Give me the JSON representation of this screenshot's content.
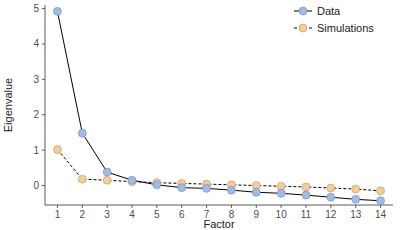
{
  "chart_data": {
    "type": "line",
    "x_label": "Factor",
    "y_label": "Eigenvalue",
    "x": [
      1,
      2,
      3,
      4,
      5,
      6,
      7,
      8,
      9,
      10,
      11,
      12,
      13,
      14
    ],
    "series": [
      {
        "name": "Data",
        "color": "#9fbbe8",
        "marker": "circle",
        "line_style": "solid",
        "values": [
          4.92,
          1.48,
          0.38,
          0.15,
          0.02,
          -0.06,
          -0.08,
          -0.13,
          -0.19,
          -0.22,
          -0.27,
          -0.33,
          -0.39,
          -0.43
        ]
      },
      {
        "name": "Simulations",
        "color": "#f6cc94",
        "marker": "circle",
        "line_style": "dashed",
        "values": [
          1.02,
          0.18,
          0.15,
          0.11,
          0.08,
          0.06,
          0.04,
          0.02,
          0.0,
          -0.02,
          -0.04,
          -0.07,
          -0.1,
          -0.15
        ]
      }
    ],
    "xlim": [
      0.5,
      14.5
    ],
    "xticks": [
      1,
      2,
      3,
      4,
      5,
      6,
      7,
      8,
      9,
      10,
      11,
      12,
      13,
      14
    ],
    "ylim": [
      -0.55,
      5.1
    ],
    "yticks": [
      0,
      1,
      2,
      3,
      4,
      5
    ],
    "grid": false,
    "legend": "top-right"
  }
}
